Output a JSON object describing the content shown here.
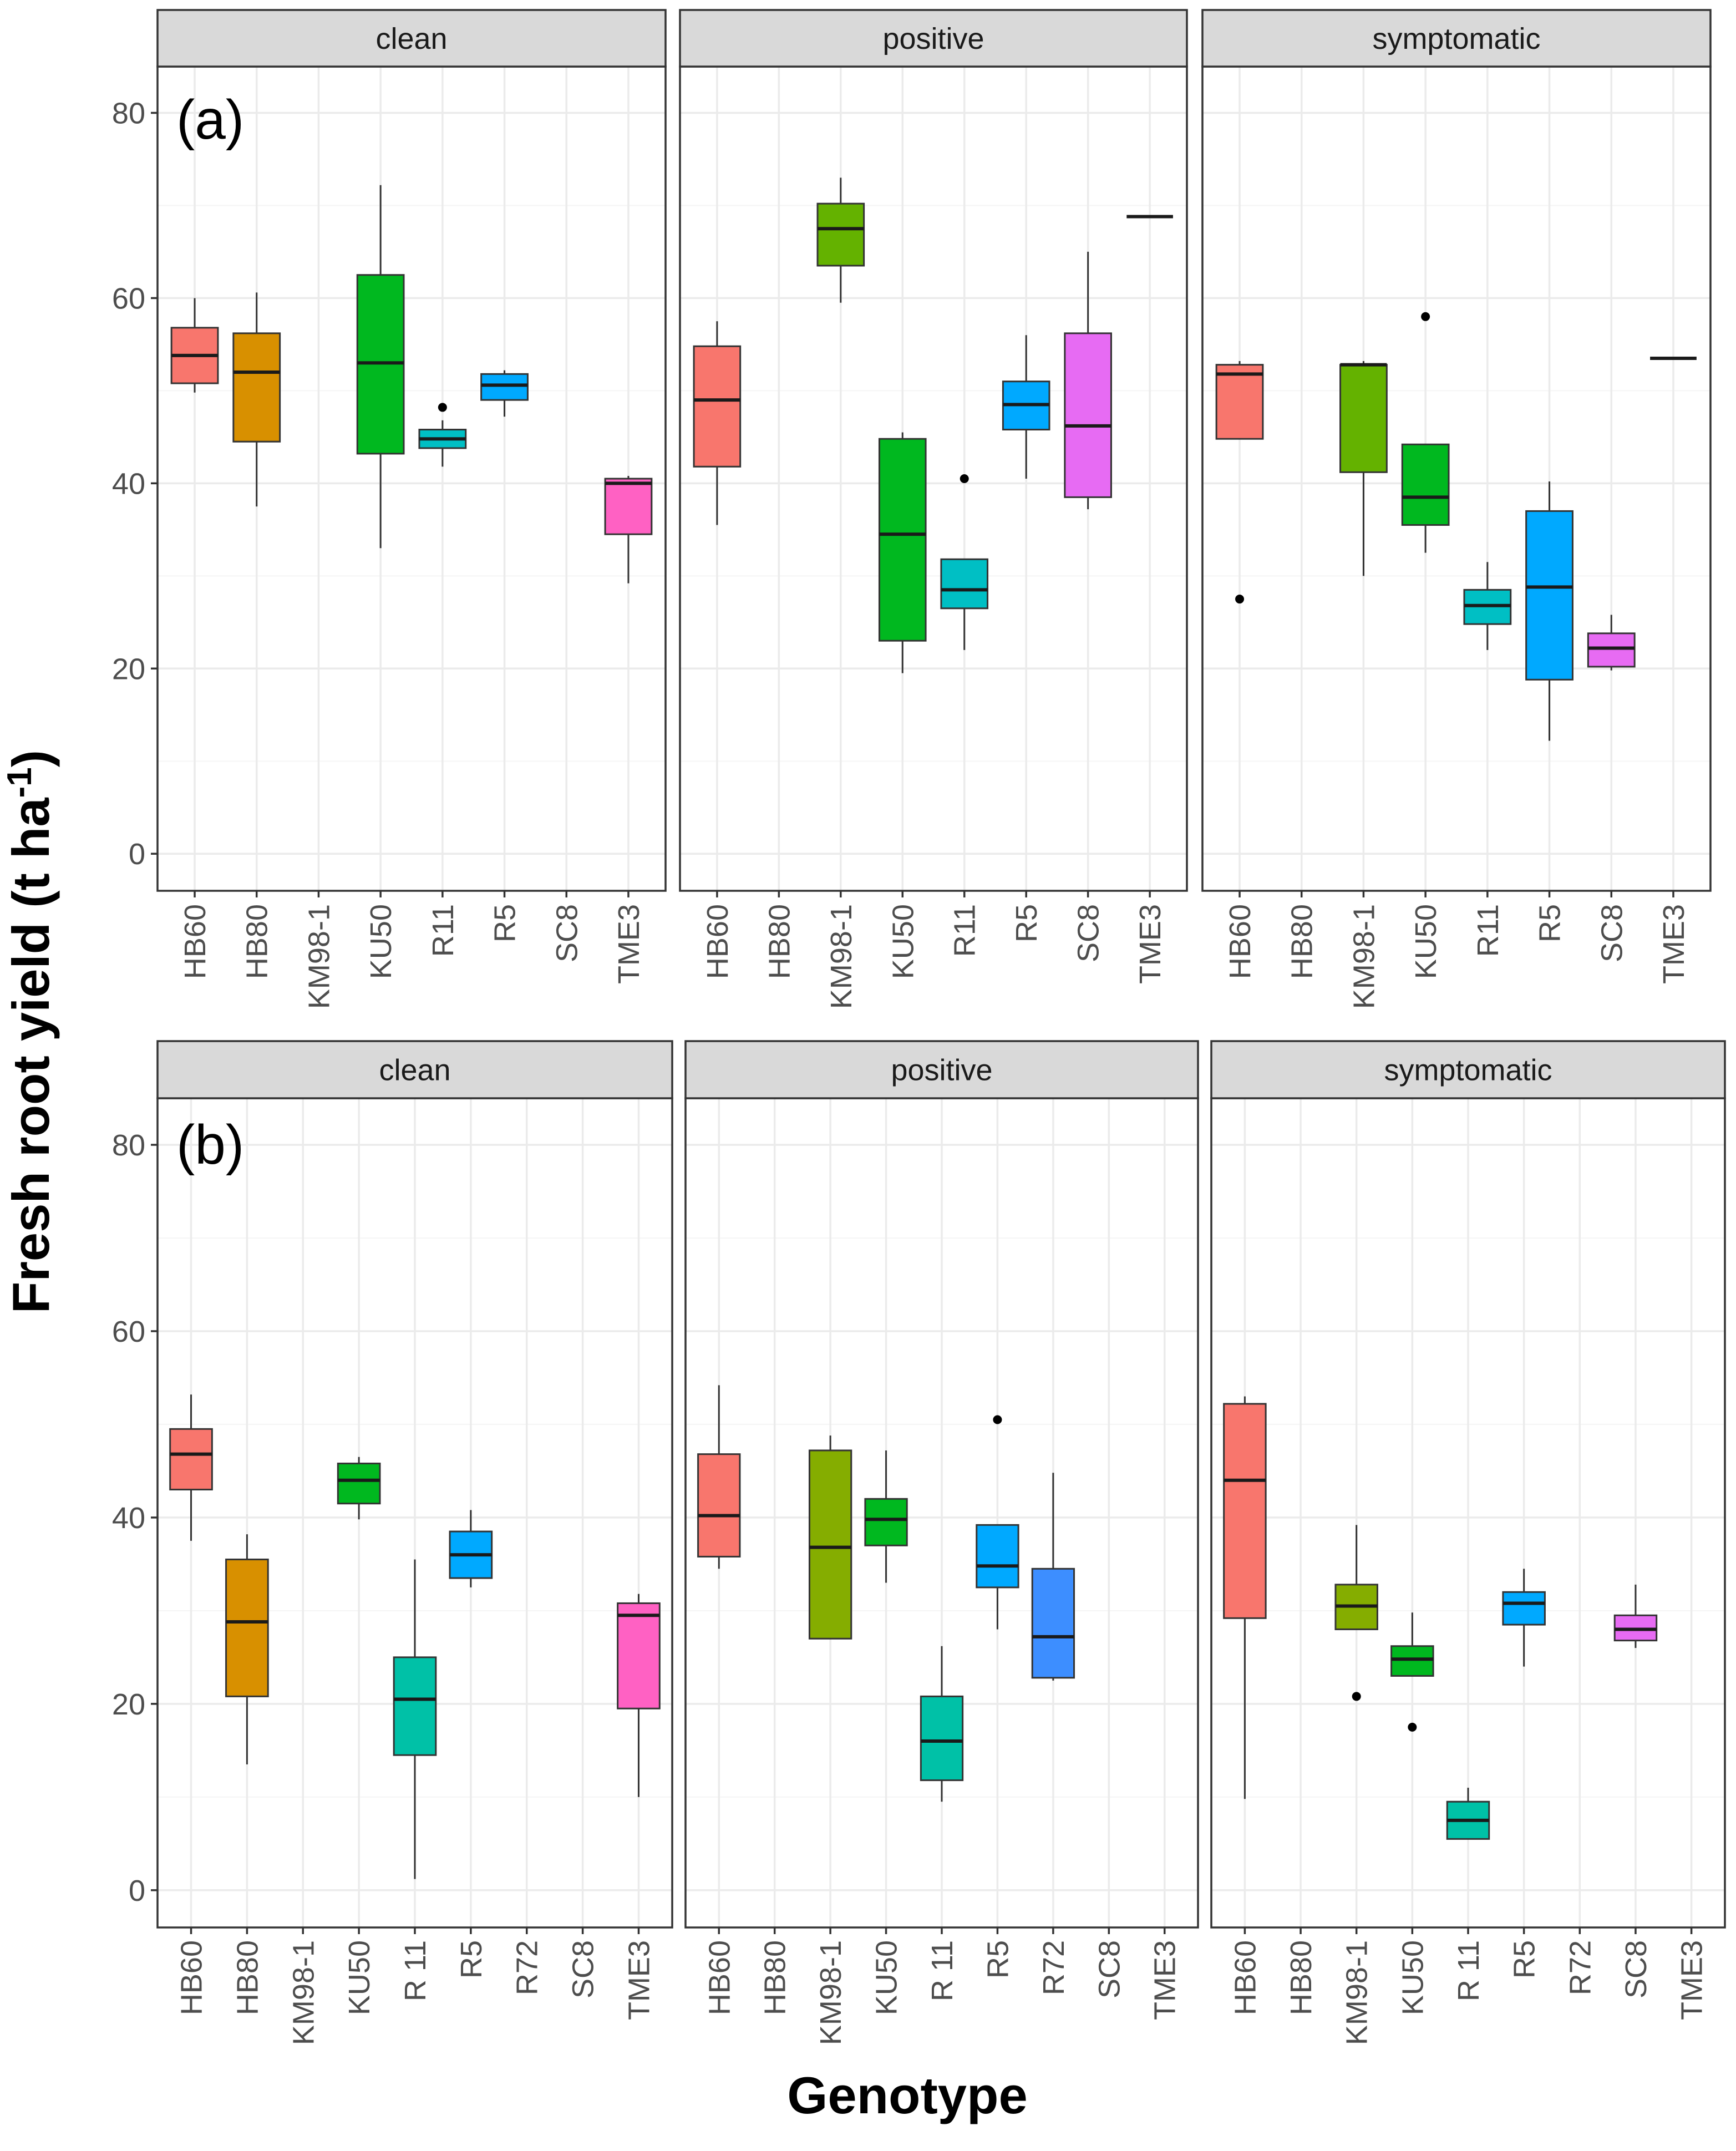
{
  "y_axis_title": "Fresh root yield (t ha",
  "y_axis_superscript": "-1",
  "y_axis_title_close": ")",
  "x_axis_title": "Genotype",
  "colors": {
    "HB60": "#F8766D",
    "HB80": "#D89000",
    "KM98-1": "#64B200",
    "KM98-1b": "#85AD00",
    "KU50": "#00B81F",
    "R11": "#00C1A7",
    "R11a": "#00BFC4",
    "R5": "#00A9FF",
    "R72": "#3D8EFF",
    "SC8": "#E76BF3",
    "TME3": "#FF61C3",
    "panel_border": "#333333",
    "strip_fill": "#D9D9D9",
    "grid_major": "#EBEBEB",
    "grid_minor": "#F5F5F5"
  },
  "chart_data": [
    {
      "type": "box",
      "tag": "(a)",
      "ylim": [
        -4,
        85
      ],
      "y_ticks": [
        0,
        20,
        40,
        60,
        80
      ],
      "categories": [
        "HB60",
        "HB80",
        "KM98-1",
        "KU50",
        "R11",
        "R5",
        "SC8",
        "TME3"
      ],
      "facets": [
        {
          "label": "clean",
          "boxes": [
            {
              "genotype": "HB60",
              "color_key": "HB60",
              "whisker_low": 49.8,
              "q1": 50.8,
              "median": 53.8,
              "q3": 56.8,
              "whisker_high": 60,
              "outliers": []
            },
            {
              "genotype": "HB80",
              "color_key": "HB80",
              "whisker_low": 37.5,
              "q1": 44.5,
              "median": 52,
              "q3": 56.2,
              "whisker_high": 60.6,
              "outliers": []
            },
            {
              "genotype": "KU50",
              "color_key": "KU50",
              "whisker_low": 33,
              "q1": 43.2,
              "median": 53,
              "q3": 62.5,
              "whisker_high": 72.2,
              "outliers": []
            },
            {
              "genotype": "R11",
              "color_key": "R11a",
              "whisker_low": 41.8,
              "q1": 43.8,
              "median": 44.8,
              "q3": 45.8,
              "whisker_high": 46.8,
              "outliers": [
                48.2
              ]
            },
            {
              "genotype": "R5",
              "color_key": "R5",
              "whisker_low": 47.2,
              "q1": 49,
              "median": 50.6,
              "q3": 51.8,
              "whisker_high": 52.2,
              "outliers": []
            },
            {
              "genotype": "TME3",
              "color_key": "TME3",
              "whisker_low": 29.2,
              "q1": 34.5,
              "median": 40,
              "q3": 40.5,
              "whisker_high": 40.8,
              "outliers": []
            }
          ]
        },
        {
          "label": "positive",
          "boxes": [
            {
              "genotype": "HB60",
              "color_key": "HB60",
              "whisker_low": 35.5,
              "q1": 41.8,
              "median": 49,
              "q3": 54.8,
              "whisker_high": 57.5,
              "outliers": []
            },
            {
              "genotype": "KM98-1",
              "color_key": "KM98-1",
              "whisker_low": 59.5,
              "q1": 63.5,
              "median": 67.5,
              "q3": 70.2,
              "whisker_high": 73,
              "outliers": []
            },
            {
              "genotype": "KU50",
              "color_key": "KU50",
              "whisker_low": 19.5,
              "q1": 23,
              "median": 34.5,
              "q3": 44.8,
              "whisker_high": 45.5,
              "outliers": []
            },
            {
              "genotype": "R11",
              "color_key": "R11a",
              "whisker_low": 22,
              "q1": 26.5,
              "median": 28.5,
              "q3": 31.8,
              "whisker_high": 31.8,
              "outliers": [
                40.5
              ]
            },
            {
              "genotype": "R5",
              "color_key": "R5",
              "whisker_low": 40.5,
              "q1": 45.8,
              "median": 48.5,
              "q3": 51,
              "whisker_high": 56,
              "outliers": []
            },
            {
              "genotype": "SC8",
              "color_key": "SC8",
              "whisker_low": 37.2,
              "q1": 38.5,
              "median": 46.2,
              "q3": 56.2,
              "whisker_high": 65,
              "outliers": []
            },
            {
              "genotype": "TME3",
              "color_key": "TME3",
              "whisker_low": 68.8,
              "q1": 68.8,
              "median": 68.8,
              "q3": 68.8,
              "whisker_high": 68.8,
              "outliers": []
            }
          ]
        },
        {
          "label": "symptomatic",
          "boxes": [
            {
              "genotype": "HB60",
              "color_key": "HB60",
              "whisker_low": 44.8,
              "q1": 44.8,
              "median": 51.8,
              "q3": 52.8,
              "whisker_high": 53.2,
              "outliers": [
                27.5
              ]
            },
            {
              "genotype": "KM98-1",
              "color_key": "KM98-1",
              "whisker_low": 30,
              "q1": 41.2,
              "median": 52.8,
              "q3": 52.8,
              "whisker_high": 53.2,
              "outliers": []
            },
            {
              "genotype": "KU50",
              "color_key": "KU50",
              "whisker_low": 32.5,
              "q1": 35.5,
              "median": 38.5,
              "q3": 44.2,
              "whisker_high": 44.2,
              "outliers": [
                58
              ]
            },
            {
              "genotype": "R11",
              "color_key": "R11a",
              "whisker_low": 22,
              "q1": 24.8,
              "median": 26.8,
              "q3": 28.5,
              "whisker_high": 31.5,
              "outliers": []
            },
            {
              "genotype": "R5",
              "color_key": "R5",
              "whisker_low": 12.2,
              "q1": 18.8,
              "median": 28.8,
              "q3": 37,
              "whisker_high": 40.2,
              "outliers": []
            },
            {
              "genotype": "SC8",
              "color_key": "SC8",
              "whisker_low": 19.8,
              "q1": 20.2,
              "median": 22.2,
              "q3": 23.8,
              "whisker_high": 25.8,
              "outliers": []
            },
            {
              "genotype": "TME3",
              "color_key": "TME3",
              "whisker_low": 53.5,
              "q1": 53.5,
              "median": 53.5,
              "q3": 53.5,
              "whisker_high": 53.5,
              "outliers": []
            }
          ]
        }
      ]
    },
    {
      "type": "box",
      "tag": "(b)",
      "ylim": [
        -4,
        85
      ],
      "y_ticks": [
        0,
        20,
        40,
        60,
        80
      ],
      "categories": [
        "HB60",
        "HB80",
        "KM98-1",
        "KU50",
        "R 11",
        "R5",
        "R72",
        "SC8",
        "TME3"
      ],
      "facets": [
        {
          "label": "clean",
          "boxes": [
            {
              "genotype": "HB60",
              "color_key": "HB60",
              "whisker_low": 37.5,
              "q1": 43,
              "median": 46.8,
              "q3": 49.5,
              "whisker_high": 53.2,
              "outliers": []
            },
            {
              "genotype": "HB80",
              "color_key": "HB80",
              "whisker_low": 13.5,
              "q1": 20.8,
              "median": 28.8,
              "q3": 35.5,
              "whisker_high": 38.2,
              "outliers": []
            },
            {
              "genotype": "KU50",
              "color_key": "KU50",
              "whisker_low": 39.8,
              "q1": 41.5,
              "median": 44,
              "q3": 45.8,
              "whisker_high": 46.5,
              "outliers": []
            },
            {
              "genotype": "R 11",
              "color_key": "R11",
              "whisker_low": 1.2,
              "q1": 14.5,
              "median": 20.5,
              "q3": 25,
              "whisker_high": 35.5,
              "outliers": []
            },
            {
              "genotype": "R5",
              "color_key": "R5",
              "whisker_low": 32.5,
              "q1": 33.5,
              "median": 36,
              "q3": 38.5,
              "whisker_high": 40.8,
              "outliers": []
            },
            {
              "genotype": "TME3",
              "color_key": "TME3",
              "whisker_low": 10,
              "q1": 19.5,
              "median": 29.5,
              "q3": 30.8,
              "whisker_high": 31.8,
              "outliers": []
            }
          ]
        },
        {
          "label": "positive",
          "boxes": [
            {
              "genotype": "HB60",
              "color_key": "HB60",
              "whisker_low": 34.5,
              "q1": 35.8,
              "median": 40.2,
              "q3": 46.8,
              "whisker_high": 54.2,
              "outliers": []
            },
            {
              "genotype": "KM98-1",
              "color_key": "KM98-1b",
              "whisker_low": 27,
              "q1": 27,
              "median": 36.8,
              "q3": 47.2,
              "whisker_high": 48.8,
              "outliers": []
            },
            {
              "genotype": "KU50",
              "color_key": "KU50",
              "whisker_low": 33,
              "q1": 37,
              "median": 39.8,
              "q3": 42,
              "whisker_high": 47.2,
              "outliers": []
            },
            {
              "genotype": "R 11",
              "color_key": "R11",
              "whisker_low": 9.5,
              "q1": 11.8,
              "median": 16,
              "q3": 20.8,
              "whisker_high": 26.2,
              "outliers": []
            },
            {
              "genotype": "R5",
              "color_key": "R5",
              "whisker_low": 28,
              "q1": 32.5,
              "median": 34.8,
              "q3": 39.2,
              "whisker_high": 39.2,
              "outliers": [
                50.5
              ]
            },
            {
              "genotype": "R72",
              "color_key": "R72",
              "whisker_low": 22.5,
              "q1": 22.8,
              "median": 27.2,
              "q3": 34.5,
              "whisker_high": 44.8,
              "outliers": []
            }
          ]
        },
        {
          "label": "symptomatic",
          "boxes": [
            {
              "genotype": "HB60",
              "color_key": "HB60",
              "whisker_low": 9.8,
              "q1": 29.2,
              "median": 44,
              "q3": 52.2,
              "whisker_high": 53,
              "outliers": []
            },
            {
              "genotype": "KM98-1",
              "color_key": "KM98-1b",
              "whisker_low": 28,
              "q1": 28,
              "median": 30.5,
              "q3": 32.8,
              "whisker_high": 39.2,
              "outliers": [
                20.8
              ]
            },
            {
              "genotype": "KU50",
              "color_key": "KU50",
              "whisker_low": 23,
              "q1": 23,
              "median": 24.8,
              "q3": 26.2,
              "whisker_high": 29.8,
              "outliers": [
                17.5
              ]
            },
            {
              "genotype": "R 11",
              "color_key": "R11",
              "whisker_low": 5.5,
              "q1": 5.5,
              "median": 7.5,
              "q3": 9.5,
              "whisker_high": 11,
              "outliers": []
            },
            {
              "genotype": "R5",
              "color_key": "R5",
              "whisker_low": 24,
              "q1": 28.5,
              "median": 30.8,
              "q3": 32,
              "whisker_high": 34.5,
              "outliers": []
            },
            {
              "genotype": "SC8",
              "color_key": "SC8",
              "whisker_low": 26,
              "q1": 26.8,
              "median": 28,
              "q3": 29.5,
              "whisker_high": 32.8,
              "outliers": []
            }
          ]
        }
      ]
    }
  ]
}
